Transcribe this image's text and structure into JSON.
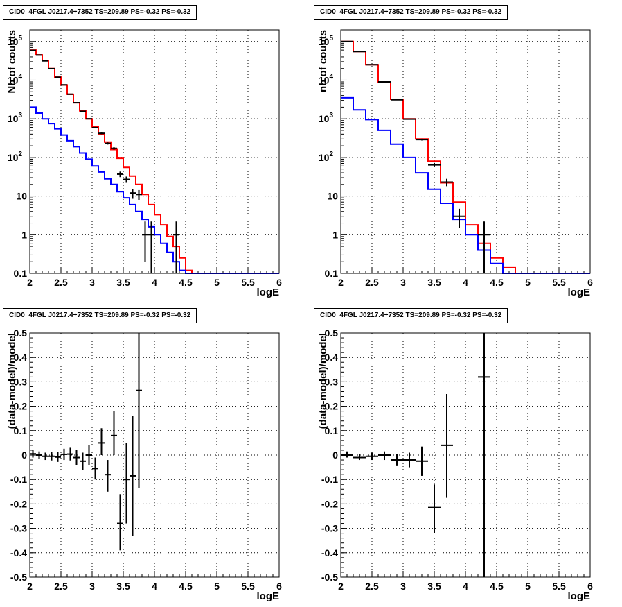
{
  "chart_data": [
    {
      "type": "line",
      "title": "CID0_4FGL J0217.4+7352 TS=209.89 PS=-0.32 PS=-0.32",
      "xlabel": "logE",
      "ylabel": "Nb of counts",
      "yscale": "log",
      "xlim": [
        2,
        6
      ],
      "ylim": [
        0.1,
        200000
      ],
      "x_ticks": [
        "2",
        "2.5",
        "3",
        "3.5",
        "4",
        "4.5",
        "5",
        "5.5",
        "6"
      ],
      "y_ticks": [
        "0.1",
        "1",
        "10",
        "10^2",
        "10^3",
        "10^4",
        "10^5"
      ],
      "grid": true,
      "series": [
        {
          "color": "#ff0000",
          "style": "step",
          "bin_edges": [
            2.0,
            2.1,
            2.2,
            2.3,
            2.4,
            2.5,
            2.6,
            2.7,
            2.8,
            2.9,
            3.0,
            3.1,
            3.2,
            3.3,
            3.4,
            3.5,
            3.6,
            3.7,
            3.8,
            3.9,
            4.0,
            4.1,
            4.2,
            4.3,
            4.4,
            4.5,
            4.6,
            4.7,
            4.8,
            4.9,
            5.0,
            5.1,
            5.2,
            5.3,
            5.4,
            5.5,
            5.6,
            5.7,
            5.8,
            5.9,
            6.0
          ],
          "values": [
            60000,
            45000,
            32000,
            20000,
            12000,
            7500,
            4300,
            2600,
            1600,
            1000,
            620,
            400,
            250,
            160,
            95,
            55,
            33,
            20,
            11,
            6,
            3.3,
            1.8,
            0.9,
            0.5,
            0.25,
            0.12,
            0.1,
            0.1,
            0.1,
            0.1,
            0.1,
            0.1,
            0.1,
            0.1,
            0.1,
            0.1,
            0.1,
            0.1,
            0.1,
            0.1
          ]
        },
        {
          "color": "#0000ff",
          "style": "step",
          "bin_edges": [
            2.0,
            2.1,
            2.2,
            2.3,
            2.4,
            2.5,
            2.6,
            2.7,
            2.8,
            2.9,
            3.0,
            3.1,
            3.2,
            3.3,
            3.4,
            3.5,
            3.6,
            3.7,
            3.8,
            3.9,
            4.0,
            4.1,
            4.2,
            4.3,
            4.4,
            4.5,
            4.6,
            4.7,
            4.8,
            4.9,
            5.0,
            5.1,
            5.2,
            5.3,
            5.4,
            5.5,
            5.6,
            5.7,
            5.8,
            5.9,
            6.0
          ],
          "values": [
            2000,
            1400,
            1000,
            750,
            550,
            380,
            270,
            190,
            130,
            90,
            60,
            42,
            28,
            20,
            13,
            9,
            6,
            4,
            2.5,
            1.6,
            1.0,
            0.6,
            0.35,
            0.2,
            0.12,
            0.1,
            0.1,
            0.1,
            0.1,
            0.1,
            0.1,
            0.1,
            0.1,
            0.1,
            0.1,
            0.1,
            0.1,
            0.1,
            0.1,
            0.1
          ]
        }
      ],
      "data_points": [
        {
          "x": 2.05,
          "y": 59000,
          "xerr": 0.05,
          "ylo": 58700,
          "yhi": 59300
        },
        {
          "x": 2.15,
          "y": 44500,
          "xerr": 0.05,
          "ylo": 44200,
          "yhi": 44800
        },
        {
          "x": 2.25,
          "y": 31500,
          "xerr": 0.05,
          "ylo": 31300,
          "yhi": 31700
        },
        {
          "x": 2.35,
          "y": 19800,
          "xerr": 0.05,
          "ylo": 19600,
          "yhi": 20000
        },
        {
          "x": 2.45,
          "y": 11900,
          "xerr": 0.05,
          "ylo": 11800,
          "yhi": 12000
        },
        {
          "x": 2.55,
          "y": 7550,
          "xerr": 0.05,
          "ylo": 7460,
          "yhi": 7640
        },
        {
          "x": 2.65,
          "y": 4330,
          "xerr": 0.05,
          "ylo": 4260,
          "yhi": 4400
        },
        {
          "x": 2.75,
          "y": 2600,
          "xerr": 0.05,
          "ylo": 2550,
          "yhi": 2650
        },
        {
          "x": 2.85,
          "y": 1560,
          "xerr": 0.05,
          "ylo": 1520,
          "yhi": 1600
        },
        {
          "x": 2.95,
          "y": 1000,
          "xerr": 0.05,
          "ylo": 970,
          "yhi": 1030
        },
        {
          "x": 3.05,
          "y": 590,
          "xerr": 0.05,
          "ylo": 565,
          "yhi": 615
        },
        {
          "x": 3.15,
          "y": 420,
          "xerr": 0.05,
          "ylo": 400,
          "yhi": 440
        },
        {
          "x": 3.25,
          "y": 230,
          "xerr": 0.05,
          "ylo": 215,
          "yhi": 245
        },
        {
          "x": 3.35,
          "y": 172,
          "xerr": 0.05,
          "ylo": 159,
          "yhi": 185
        },
        {
          "x": 3.45,
          "y": 37,
          "xerr": 0.05,
          "ylo": 31,
          "yhi": 43
        },
        {
          "x": 3.55,
          "y": 27,
          "xerr": 0.05,
          "ylo": 22,
          "yhi": 32
        },
        {
          "x": 3.65,
          "y": 12,
          "xerr": 0.05,
          "ylo": 8.5,
          "yhi": 15.5
        },
        {
          "x": 3.75,
          "y": 11,
          "xerr": 0.05,
          "ylo": 7.7,
          "yhi": 14.3
        },
        {
          "x": 3.85,
          "y": 1,
          "xerr": 0.05,
          "ylo": 0.2,
          "yhi": 2.2
        },
        {
          "x": 3.95,
          "y": 1,
          "xerr": 0.05,
          "ylo": 0.1,
          "yhi": 2.2
        },
        {
          "x": 4.35,
          "y": 1,
          "xerr": 0.05,
          "ylo": 0.1,
          "yhi": 2.2
        }
      ]
    },
    {
      "type": "line",
      "title": "CID0_4FGL J0217.4+7352 TS=209.89 PS=-0.32 PS=-0.32",
      "xlabel": "logE",
      "ylabel": "nb of counts",
      "yscale": "log",
      "xlim": [
        2,
        6
      ],
      "ylim": [
        0.1,
        200000
      ],
      "x_ticks": [
        "2",
        "2.5",
        "3",
        "3.5",
        "4",
        "4.5",
        "5",
        "5.5",
        "6"
      ],
      "y_ticks": [
        "0.1",
        "1",
        "10",
        "10^2",
        "10^3",
        "10^4",
        "10^5"
      ],
      "grid": true,
      "series": [
        {
          "color": "#ff0000",
          "style": "step",
          "bin_edges": [
            2.0,
            2.2,
            2.4,
            2.6,
            2.8,
            3.0,
            3.2,
            3.4,
            3.6,
            3.8,
            4.0,
            4.2,
            4.4,
            4.6,
            4.8,
            5.0,
            5.2,
            5.4,
            5.6,
            5.8,
            6.0
          ],
          "values": [
            100000,
            55000,
            25000,
            9000,
            3200,
            1000,
            300,
            80,
            22,
            7,
            1.8,
            0.6,
            0.25,
            0.14,
            0.1,
            0.1,
            0.1,
            0.1,
            0.1,
            0.1
          ]
        },
        {
          "color": "#0000ff",
          "style": "step",
          "bin_edges": [
            2.0,
            2.2,
            2.4,
            2.6,
            2.8,
            3.0,
            3.2,
            3.4,
            3.6,
            3.8,
            4.0,
            4.2,
            4.4,
            4.6,
            4.8,
            5.0,
            5.2,
            5.4,
            5.6,
            5.8,
            6.0
          ],
          "values": [
            3500,
            1700,
            950,
            500,
            220,
            100,
            40,
            15,
            6.5,
            2.5,
            1.0,
            0.4,
            0.18,
            0.1,
            0.1,
            0.1,
            0.1,
            0.1,
            0.1,
            0.1
          ]
        }
      ],
      "data_points": [
        {
          "x": 2.1,
          "y": 100000,
          "xerr": 0.1,
          "ylo": 99500,
          "yhi": 100500
        },
        {
          "x": 2.3,
          "y": 55000,
          "xerr": 0.1,
          "ylo": 54700,
          "yhi": 55300
        },
        {
          "x": 2.5,
          "y": 25000,
          "xerr": 0.1,
          "ylo": 24800,
          "yhi": 25200
        },
        {
          "x": 2.7,
          "y": 9000,
          "xerr": 0.1,
          "ylo": 8900,
          "yhi": 9100
        },
        {
          "x": 2.9,
          "y": 3100,
          "xerr": 0.1,
          "ylo": 3050,
          "yhi": 3150
        },
        {
          "x": 3.1,
          "y": 980,
          "xerr": 0.1,
          "ylo": 950,
          "yhi": 1010
        },
        {
          "x": 3.3,
          "y": 290,
          "xerr": 0.1,
          "ylo": 275,
          "yhi": 305
        },
        {
          "x": 3.5,
          "y": 64,
          "xerr": 0.1,
          "ylo": 56,
          "yhi": 72
        },
        {
          "x": 3.7,
          "y": 23,
          "xerr": 0.1,
          "ylo": 18,
          "yhi": 28
        },
        {
          "x": 3.9,
          "y": 3,
          "xerr": 0.1,
          "ylo": 1.5,
          "yhi": 4.7
        },
        {
          "x": 4.3,
          "y": 1,
          "xerr": 0.1,
          "ylo": 0.1,
          "yhi": 2.2
        }
      ]
    },
    {
      "type": "scatter",
      "title": "CID0_4FGL J0217.4+7352 TS=209.89 PS=-0.32 PS=-0.32",
      "xlabel": "logE",
      "ylabel": "(data-model)/model",
      "xlim": [
        2,
        6
      ],
      "ylim": [
        -0.5,
        0.5
      ],
      "x_ticks": [
        "2",
        "2.5",
        "3",
        "3.5",
        "4",
        "4.5",
        "5",
        "5.5",
        "6"
      ],
      "y_ticks": [
        "-0.5",
        "-0.4",
        "-0.3",
        "-0.2",
        "-0.1",
        "0",
        "0.1",
        "0.2",
        "0.3",
        "0.4",
        "0.5"
      ],
      "grid": true,
      "data_points": [
        {
          "x": 2.05,
          "y": 0.005,
          "xerr": 0.05,
          "ylo": -0.01,
          "yhi": 0.02
        },
        {
          "x": 2.15,
          "y": 0.0,
          "xerr": 0.05,
          "ylo": -0.015,
          "yhi": 0.015
        },
        {
          "x": 2.25,
          "y": -0.005,
          "xerr": 0.05,
          "ylo": -0.02,
          "yhi": 0.01
        },
        {
          "x": 2.35,
          "y": -0.005,
          "xerr": 0.05,
          "ylo": -0.022,
          "yhi": 0.012
        },
        {
          "x": 2.45,
          "y": -0.008,
          "xerr": 0.05,
          "ylo": -0.028,
          "yhi": 0.012
        },
        {
          "x": 2.55,
          "y": 0.003,
          "xerr": 0.05,
          "ylo": -0.02,
          "yhi": 0.026
        },
        {
          "x": 2.65,
          "y": 0.004,
          "xerr": 0.05,
          "ylo": -0.022,
          "yhi": 0.03
        },
        {
          "x": 2.75,
          "y": -0.01,
          "xerr": 0.05,
          "ylo": -0.04,
          "yhi": 0.02
        },
        {
          "x": 2.85,
          "y": -0.025,
          "xerr": 0.05,
          "ylo": -0.06,
          "yhi": 0.01
        },
        {
          "x": 2.95,
          "y": 0.0,
          "xerr": 0.05,
          "ylo": -0.04,
          "yhi": 0.04
        },
        {
          "x": 3.05,
          "y": -0.055,
          "xerr": 0.05,
          "ylo": -0.1,
          "yhi": -0.01
        },
        {
          "x": 3.15,
          "y": 0.05,
          "xerr": 0.05,
          "ylo": 0.0,
          "yhi": 0.11
        },
        {
          "x": 3.25,
          "y": -0.08,
          "xerr": 0.05,
          "ylo": -0.15,
          "yhi": -0.02
        },
        {
          "x": 3.35,
          "y": 0.08,
          "xerr": 0.05,
          "ylo": 0.0,
          "yhi": 0.18
        },
        {
          "x": 3.45,
          "y": -0.28,
          "xerr": 0.05,
          "ylo": -0.39,
          "yhi": -0.16
        },
        {
          "x": 3.55,
          "y": -0.1,
          "xerr": 0.05,
          "ylo": -0.28,
          "yhi": 0.05
        },
        {
          "x": 3.65,
          "y": -0.085,
          "xerr": 0.05,
          "ylo": -0.33,
          "yhi": 0.16
        },
        {
          "x": 3.75,
          "y": 0.265,
          "xerr": 0.05,
          "ylo": -0.135,
          "yhi": 0.5
        }
      ]
    },
    {
      "type": "scatter",
      "title": "CID0_4FGL J0217.4+7352 TS=209.89 PS=-0.32 PS=-0.32",
      "xlabel": "logE",
      "ylabel": "(data-model)/model",
      "xlim": [
        2,
        6
      ],
      "ylim": [
        -0.5,
        0.5
      ],
      "x_ticks": [
        "2",
        "2.5",
        "3",
        "3.5",
        "4",
        "4.5",
        "5",
        "5.5",
        "6"
      ],
      "y_ticks": [
        "-0.5",
        "-0.4",
        "-0.3",
        "-0.2",
        "-0.1",
        "0",
        "0.1",
        "0.2",
        "0.3",
        "0.4",
        "0.5"
      ],
      "grid": true,
      "data_points": [
        {
          "x": 2.1,
          "y": 0.0,
          "xerr": 0.1,
          "ylo": -0.01,
          "yhi": 0.015
        },
        {
          "x": 2.3,
          "y": -0.01,
          "xerr": 0.1,
          "ylo": -0.02,
          "yhi": 0.005
        },
        {
          "x": 2.5,
          "y": -0.005,
          "xerr": 0.1,
          "ylo": -0.02,
          "yhi": 0.01
        },
        {
          "x": 2.7,
          "y": 0.0,
          "xerr": 0.1,
          "ylo": -0.02,
          "yhi": 0.015
        },
        {
          "x": 2.9,
          "y": -0.02,
          "xerr": 0.1,
          "ylo": -0.045,
          "yhi": 0.005
        },
        {
          "x": 3.1,
          "y": -0.02,
          "xerr": 0.1,
          "ylo": -0.05,
          "yhi": 0.01
        },
        {
          "x": 3.3,
          "y": -0.025,
          "xerr": 0.1,
          "ylo": -0.085,
          "yhi": 0.035
        },
        {
          "x": 3.5,
          "y": -0.215,
          "xerr": 0.1,
          "ylo": -0.32,
          "yhi": -0.12
        },
        {
          "x": 3.7,
          "y": 0.04,
          "xerr": 0.1,
          "ylo": -0.175,
          "yhi": 0.25
        },
        {
          "x": 4.3,
          "y": 0.32,
          "xerr": 0.1,
          "ylo": -0.5,
          "yhi": 0.5
        }
      ]
    }
  ]
}
